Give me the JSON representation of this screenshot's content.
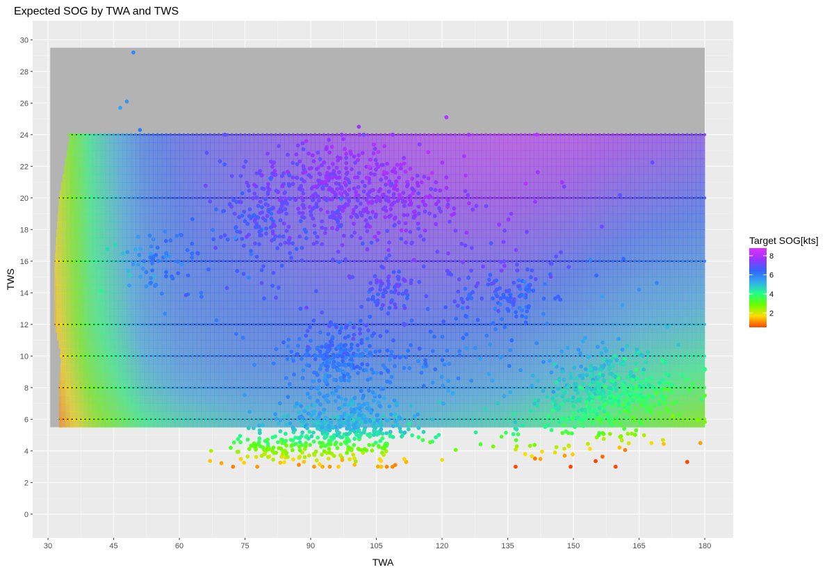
{
  "chart_data": {
    "type": "scatter",
    "title": "Expected SOG by TWA and TWS",
    "xlabel": "TWA",
    "ylabel": "TWS",
    "xlim": [
      26.5,
      186.5
    ],
    "ylim": [
      -1.5,
      31.2
    ],
    "x_ticks": [
      30,
      45,
      60,
      75,
      90,
      105,
      120,
      135,
      150,
      165,
      180
    ],
    "y_ticks": [
      0,
      2,
      4,
      6,
      8,
      10,
      12,
      14,
      16,
      18,
      20,
      22,
      24,
      26,
      28,
      30
    ],
    "grid": true,
    "legend": {
      "title": "Target SOG[kts]",
      "placement": "right",
      "ticks": [
        2,
        4,
        6,
        8
      ],
      "range": [
        0.5,
        8.8
      ],
      "colors": [
        "#ff4400",
        "#ffdd00",
        "#66ff00",
        "#22ff88",
        "#33aaee",
        "#3366ff",
        "#9933ff",
        "#dd33ff"
      ]
    },
    "background_region": {
      "x_range": [
        30.5,
        180
      ],
      "tws_range": [
        5.5,
        29.5
      ],
      "color": "#b3b3b3"
    },
    "target_lines": {
      "tws_levels": [
        6,
        8,
        10,
        12,
        16,
        20,
        24
      ],
      "twa_start": [
        32.5,
        32.5,
        33,
        31.5,
        31.5,
        32.5,
        35
      ],
      "twa_end": 180,
      "twa_step": 1
    },
    "polar_model": {
      "description_free_params": true,
      "twa_points": [
        30,
        40,
        52,
        60,
        75,
        90,
        110,
        135,
        150,
        165,
        180
      ],
      "sog_at_tws": {
        "6": [
          0.5,
          2.5,
          4.1,
          4.6,
          5.0,
          5.2,
          5.1,
          4.6,
          4.0,
          3.3,
          2.8
        ],
        "8": [
          0.7,
          3.0,
          4.8,
          5.3,
          5.7,
          5.8,
          5.7,
          5.3,
          4.8,
          4.1,
          3.6
        ],
        "10": [
          0.9,
          3.4,
          5.2,
          5.7,
          6.1,
          6.2,
          6.2,
          5.8,
          5.3,
          4.7,
          4.3
        ],
        "12": [
          1.0,
          3.7,
          5.5,
          6.0,
          6.3,
          6.5,
          6.6,
          6.3,
          5.8,
          5.2,
          4.9
        ],
        "16": [
          1.2,
          4.0,
          5.8,
          6.3,
          6.6,
          6.9,
          7.1,
          7.0,
          6.6,
          6.1,
          5.8
        ],
        "20": [
          1.3,
          4.1,
          6.0,
          6.5,
          6.9,
          7.2,
          7.5,
          7.6,
          7.3,
          6.9,
          6.6
        ],
        "24": [
          1.4,
          4.3,
          6.2,
          6.7,
          7.1,
          7.5,
          7.9,
          8.2,
          8.0,
          7.6,
          7.3
        ]
      }
    },
    "clusters": [
      {
        "twa_center": 95,
        "twa_spread": 10,
        "tws_center": 20.5,
        "tws_spread": 1.6,
        "count": 380
      },
      {
        "twa_center": 78,
        "twa_spread": 5,
        "tws_center": 18.5,
        "tws_spread": 2.0,
        "count": 120
      },
      {
        "twa_center": 113,
        "twa_spread": 8,
        "tws_center": 19.5,
        "tws_spread": 1.5,
        "count": 120
      },
      {
        "twa_center": 55,
        "twa_spread": 7,
        "tws_center": 16,
        "tws_spread": 1.2,
        "count": 70
      },
      {
        "twa_center": 108,
        "twa_spread": 3,
        "tws_center": 14,
        "tws_spread": 0.8,
        "count": 60
      },
      {
        "twa_center": 135,
        "twa_spread": 5,
        "tws_center": 14,
        "tws_spread": 1.2,
        "count": 100
      },
      {
        "twa_center": 96,
        "twa_spread": 5,
        "tws_center": 10,
        "tws_spread": 1.0,
        "count": 200
      },
      {
        "twa_center": 112,
        "twa_spread": 14,
        "tws_center": 9.5,
        "tws_spread": 1.5,
        "count": 100
      },
      {
        "twa_center": 97,
        "twa_spread": 8,
        "tws_center": 5.6,
        "tws_spread": 1.2,
        "count": 400
      },
      {
        "twa_center": 82,
        "twa_spread": 6,
        "tws_center": 4.1,
        "tws_spread": 0.6,
        "count": 90
      },
      {
        "twa_center": 158,
        "twa_spread": 8,
        "tws_center": 7.5,
        "tws_spread": 1.4,
        "count": 420
      },
      {
        "twa_center": 140,
        "twa_spread": 12,
        "tws_center": 4.8,
        "tws_spread": 0.8,
        "count": 40
      },
      {
        "twa_center": 120,
        "twa_spread": 25,
        "tws_center": 16,
        "tws_spread": 3.5,
        "count": 120
      }
    ],
    "outliers": [
      {
        "twa": 49.5,
        "tws": 29.2
      },
      {
        "twa": 46.5,
        "tws": 25.7
      },
      {
        "twa": 48,
        "tws": 26.1
      },
      {
        "twa": 51,
        "tws": 24.3
      },
      {
        "twa": 121,
        "tws": 25.1
      },
      {
        "twa": 101,
        "tws": 24.5
      },
      {
        "twa": 73,
        "tws": 11.4
      },
      {
        "twa": 165,
        "tws": 14.2
      },
      {
        "twa": 176,
        "tws": 3.3
      },
      {
        "twa": 179,
        "tws": 4.5
      },
      {
        "twa": 148,
        "tws": 3.7
      },
      {
        "twa": 139,
        "tws": 3.8
      }
    ]
  }
}
